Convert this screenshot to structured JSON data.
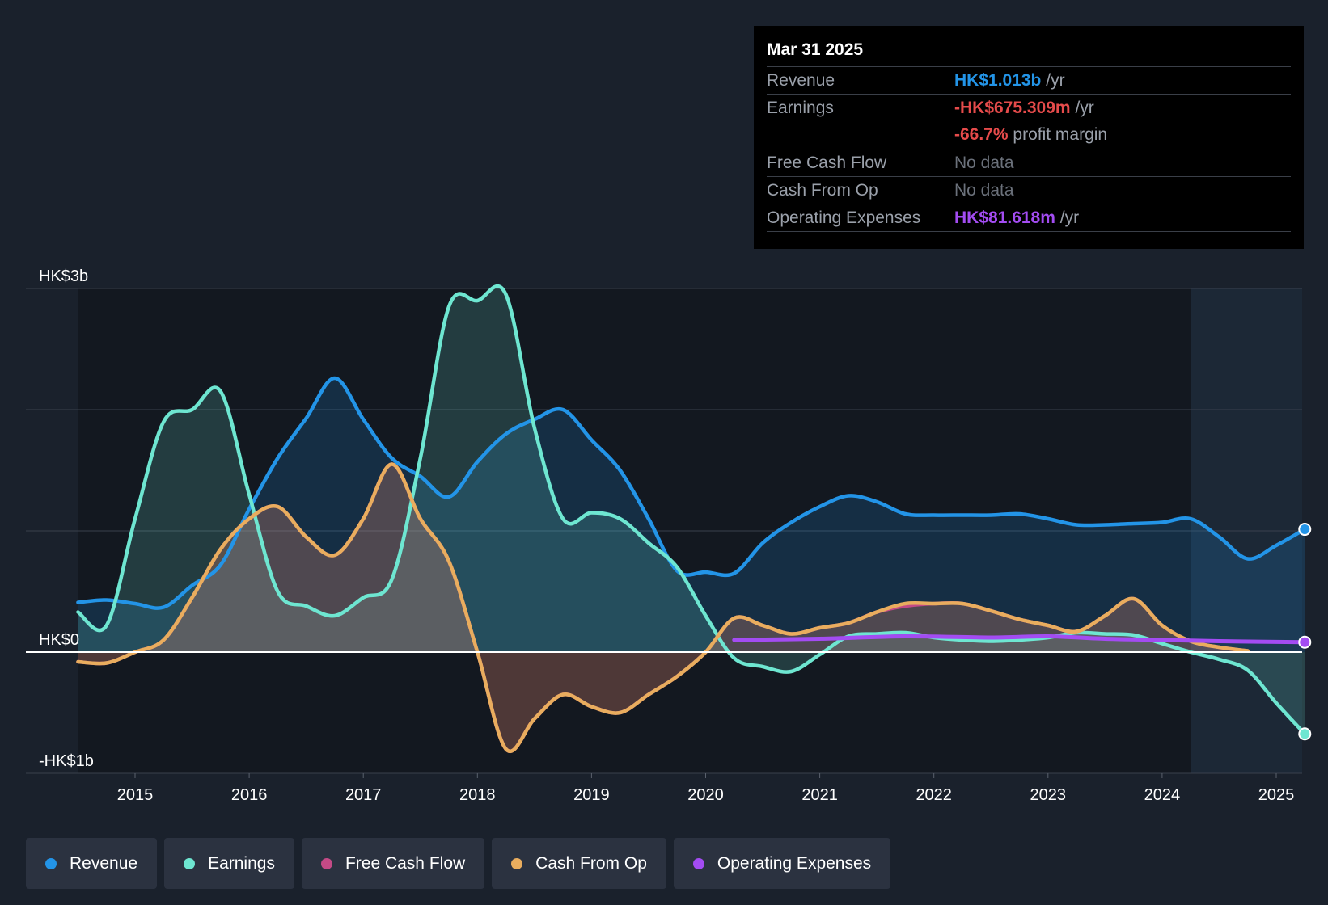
{
  "chart_data": {
    "type": "area",
    "ylim": [
      -1,
      3
    ],
    "y_ticks": [
      {
        "value": 3,
        "label": "HK$3b"
      },
      {
        "value": 0,
        "label": "HK$0"
      },
      {
        "value": -1,
        "label": "-HK$1b"
      }
    ],
    "x_range": [
      2014.5,
      2025.25
    ],
    "x_ticks": [
      "2015",
      "2016",
      "2017",
      "2018",
      "2019",
      "2020",
      "2021",
      "2022",
      "2023",
      "2024",
      "2025"
    ],
    "forecast_start": 2024.25,
    "series": [
      {
        "name": "Revenue",
        "color": "#2394e7",
        "x": [
          2014.5,
          2014.75,
          2015.0,
          2015.25,
          2015.5,
          2015.75,
          2016.0,
          2016.25,
          2016.5,
          2016.75,
          2017.0,
          2017.25,
          2017.5,
          2017.75,
          2018.0,
          2018.25,
          2018.5,
          2018.75,
          2019.0,
          2019.25,
          2019.5,
          2019.75,
          2020.0,
          2020.25,
          2020.5,
          2020.75,
          2021.0,
          2021.25,
          2021.5,
          2021.75,
          2022.0,
          2022.25,
          2022.5,
          2022.75,
          2023.0,
          2023.25,
          2023.5,
          2023.75,
          2024.0,
          2024.25,
          2024.5,
          2024.75,
          2025.0,
          2025.25
        ],
        "values": [
          0.41,
          0.43,
          0.4,
          0.37,
          0.55,
          0.72,
          1.18,
          1.6,
          1.93,
          2.26,
          1.92,
          1.6,
          1.45,
          1.28,
          1.57,
          1.8,
          1.92,
          2.0,
          1.75,
          1.5,
          1.1,
          0.67,
          0.66,
          0.65,
          0.9,
          1.07,
          1.2,
          1.29,
          1.24,
          1.14,
          1.13,
          1.13,
          1.13,
          1.14,
          1.1,
          1.05,
          1.05,
          1.06,
          1.07,
          1.1,
          0.95,
          0.77,
          0.88,
          1.013
        ]
      },
      {
        "name": "Earnings",
        "color": "#6ee6d1",
        "x": [
          2014.5,
          2014.75,
          2015.0,
          2015.25,
          2015.5,
          2015.75,
          2016.0,
          2016.25,
          2016.5,
          2016.75,
          2017.0,
          2017.25,
          2017.5,
          2017.75,
          2018.0,
          2018.25,
          2018.5,
          2018.75,
          2019.0,
          2019.25,
          2019.5,
          2019.75,
          2020.0,
          2020.25,
          2020.5,
          2020.75,
          2021.0,
          2021.25,
          2021.5,
          2021.75,
          2022.0,
          2022.25,
          2022.5,
          2022.75,
          2023.0,
          2023.25,
          2023.5,
          2023.75,
          2024.0,
          2024.25,
          2024.5,
          2024.75,
          2025.0,
          2025.25
        ],
        "values": [
          0.33,
          0.22,
          1.1,
          1.9,
          2.0,
          2.15,
          1.3,
          0.5,
          0.38,
          0.3,
          0.45,
          0.6,
          1.6,
          2.85,
          2.9,
          2.95,
          1.85,
          1.1,
          1.15,
          1.1,
          0.9,
          0.7,
          0.3,
          -0.05,
          -0.12,
          -0.16,
          -0.02,
          0.13,
          0.15,
          0.16,
          0.12,
          0.1,
          0.09,
          0.1,
          0.12,
          0.16,
          0.15,
          0.14,
          0.07,
          0.0,
          -0.06,
          -0.15,
          -0.42,
          -0.675
        ]
      },
      {
        "name": "Free Cash Flow",
        "color": "#c44a86",
        "x": [
          2014.5,
          2014.75,
          2015.0,
          2015.25,
          2015.5,
          2015.75,
          2016.0,
          2016.25,
          2016.5,
          2016.75,
          2017.0,
          2017.25,
          2017.5,
          2017.75,
          2018.0,
          2018.25,
          2018.5,
          2018.75,
          2019.0,
          2019.25,
          2019.5,
          2019.75,
          2020.0,
          2020.25,
          2020.5,
          2020.75,
          2021.0,
          2021.25,
          2021.5,
          2021.75,
          2022.0,
          2022.25,
          2022.5,
          2022.75,
          2023.0,
          2023.25,
          2023.5,
          2023.75,
          2024.0,
          2024.25,
          2024.5,
          2024.75
        ],
        "values": [
          -0.08,
          -0.09,
          0.0,
          0.1,
          0.45,
          0.85,
          1.1,
          1.2,
          0.95,
          0.8,
          1.1,
          1.55,
          1.1,
          0.75,
          0.0,
          -0.8,
          -0.55,
          -0.35,
          -0.45,
          -0.5,
          -0.35,
          -0.2,
          0.0,
          0.28,
          0.22,
          0.15,
          0.2,
          0.24,
          0.33,
          0.38,
          0.4,
          0.4,
          0.34,
          0.27,
          0.22,
          0.17,
          0.3,
          0.44,
          0.22,
          0.09,
          0.04,
          0.01
        ]
      },
      {
        "name": "Cash From Op",
        "color": "#e9ad5e",
        "x": [
          2014.5,
          2014.75,
          2015.0,
          2015.25,
          2015.5,
          2015.75,
          2016.0,
          2016.25,
          2016.5,
          2016.75,
          2017.0,
          2017.25,
          2017.5,
          2017.75,
          2018.0,
          2018.25,
          2018.5,
          2018.75,
          2019.0,
          2019.25,
          2019.5,
          2019.75,
          2020.0,
          2020.25,
          2020.5,
          2020.75,
          2021.0,
          2021.25,
          2021.5,
          2021.75,
          2022.0,
          2022.25,
          2022.5,
          2022.75,
          2023.0,
          2023.25,
          2023.5,
          2023.75,
          2024.0,
          2024.25,
          2024.5,
          2024.75
        ],
        "values": [
          -0.08,
          -0.09,
          0.0,
          0.1,
          0.45,
          0.85,
          1.1,
          1.2,
          0.95,
          0.8,
          1.1,
          1.55,
          1.1,
          0.75,
          0.0,
          -0.8,
          -0.55,
          -0.35,
          -0.45,
          -0.5,
          -0.35,
          -0.2,
          0.0,
          0.28,
          0.22,
          0.15,
          0.2,
          0.24,
          0.33,
          0.4,
          0.4,
          0.4,
          0.34,
          0.27,
          0.22,
          0.17,
          0.3,
          0.44,
          0.22,
          0.09,
          0.04,
          0.01
        ]
      },
      {
        "name": "Operating Expenses",
        "color": "#a34cf2",
        "x": [
          2020.25,
          2021.0,
          2021.75,
          2022.5,
          2023.0,
          2023.5,
          2024.0,
          2024.5,
          2025.25
        ],
        "values": [
          0.1,
          0.11,
          0.13,
          0.12,
          0.13,
          0.11,
          0.1,
          0.09,
          0.082
        ]
      }
    ]
  },
  "tooltip": {
    "date": "Mar 31 2025",
    "rows": {
      "revenue": {
        "label": "Revenue",
        "value": "HK$1.013b",
        "unit": "/yr",
        "color": "#2394e7"
      },
      "earnings": {
        "label": "Earnings",
        "value": "-HK$675.309m",
        "unit": "/yr",
        "color": "#e64b4b",
        "margin_value": "-66.7%",
        "margin_unit": "profit margin"
      },
      "fcf": {
        "label": "Free Cash Flow",
        "value": "No data"
      },
      "cfo": {
        "label": "Cash From Op",
        "value": "No data"
      },
      "opex": {
        "label": "Operating Expenses",
        "value": "HK$81.618m",
        "unit": "/yr",
        "color": "#a34cf2"
      }
    }
  },
  "legend": [
    {
      "label": "Revenue",
      "color": "#2394e7"
    },
    {
      "label": "Earnings",
      "color": "#6ee6d1"
    },
    {
      "label": "Free Cash Flow",
      "color": "#c44a86"
    },
    {
      "label": "Cash From Op",
      "color": "#e9ad5e"
    },
    {
      "label": "Operating Expenses",
      "color": "#a34cf2"
    }
  ]
}
